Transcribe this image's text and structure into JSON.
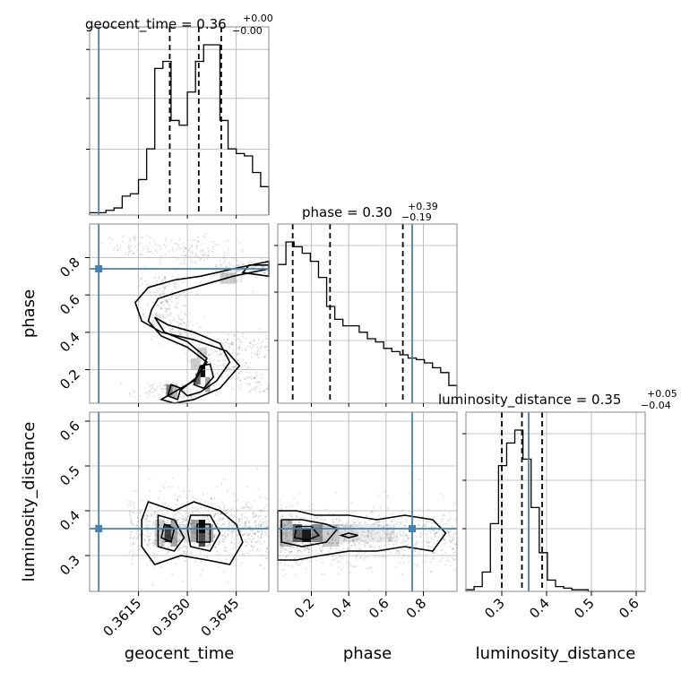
{
  "chart_data": {
    "type": "corner",
    "parameters": [
      "geocent_time",
      "phase",
      "luminosity_distance"
    ],
    "colors": {
      "truth": "#4682b4",
      "hist": "#000000",
      "grid": "#b0b0b0",
      "frame": "#888888",
      "density": "#000000"
    },
    "truth": {
      "geocent_time": 0.36028,
      "phase": 0.74,
      "luminosity_distance": 0.36
    },
    "titles": [
      {
        "param": "geocent_time",
        "text": "geocent_time = 0.36",
        "plus": "+0.00",
        "minus": "−0.00"
      },
      {
        "param": "phase",
        "text": "phase = 0.30",
        "plus": "+0.39",
        "minus": "−0.19"
      },
      {
        "param": "luminosity_distance",
        "text": "luminosity_distance = 0.35",
        "plus": "+0.05",
        "minus": "−0.04"
      }
    ],
    "ranges": {
      "geocent_time": [
        0.36,
        0.3655
      ],
      "phase": [
        0.02,
        0.98
      ],
      "luminosity_distance": [
        0.22,
        0.62
      ]
    },
    "ticks": {
      "geocent_time": {
        "values": [
          0.3615,
          0.363,
          0.3645
        ],
        "labels": [
          "0.3615",
          "0.3630",
          "0.3645"
        ]
      },
      "phase": {
        "values": [
          0.2,
          0.4,
          0.6,
          0.8
        ],
        "labels": [
          "0.2",
          "0.4",
          "0.6",
          "0.8"
        ]
      },
      "luminosity_distance": {
        "values": [
          0.3,
          0.4,
          0.5,
          0.6
        ],
        "labels": [
          "0.3",
          "0.4",
          "0.5",
          "0.6"
        ]
      }
    },
    "quantiles": {
      "geocent_time": [
        0.36246,
        0.36335,
        0.36404
      ],
      "phase": [
        0.1,
        0.3,
        0.69
      ],
      "luminosity_distance": [
        0.3,
        0.345,
        0.39
      ]
    },
    "histograms": {
      "geocent_time": [
        1,
        1,
        2,
        3,
        8,
        9,
        15,
        28,
        62,
        65,
        40,
        38,
        52,
        65,
        72,
        72,
        40,
        28,
        26,
        25,
        18,
        12
      ],
      "phase": [
        86,
        100,
        97,
        93,
        88,
        78,
        60,
        52,
        48,
        48,
        44,
        40,
        38,
        34,
        32,
        30,
        28,
        27,
        25,
        22,
        19,
        11
      ],
      "luminosity_distance": [
        1,
        3,
        12,
        42,
        78,
        92,
        100,
        82,
        52,
        24,
        7,
        3,
        2,
        1,
        1,
        0,
        0,
        0,
        0,
        0,
        0,
        0
      ]
    },
    "title_labels": {
      "bottom_axes": [
        "geocent_time",
        "phase",
        "luminosity_distance"
      ],
      "left_axes": [
        "phase",
        "luminosity_distance"
      ]
    }
  }
}
